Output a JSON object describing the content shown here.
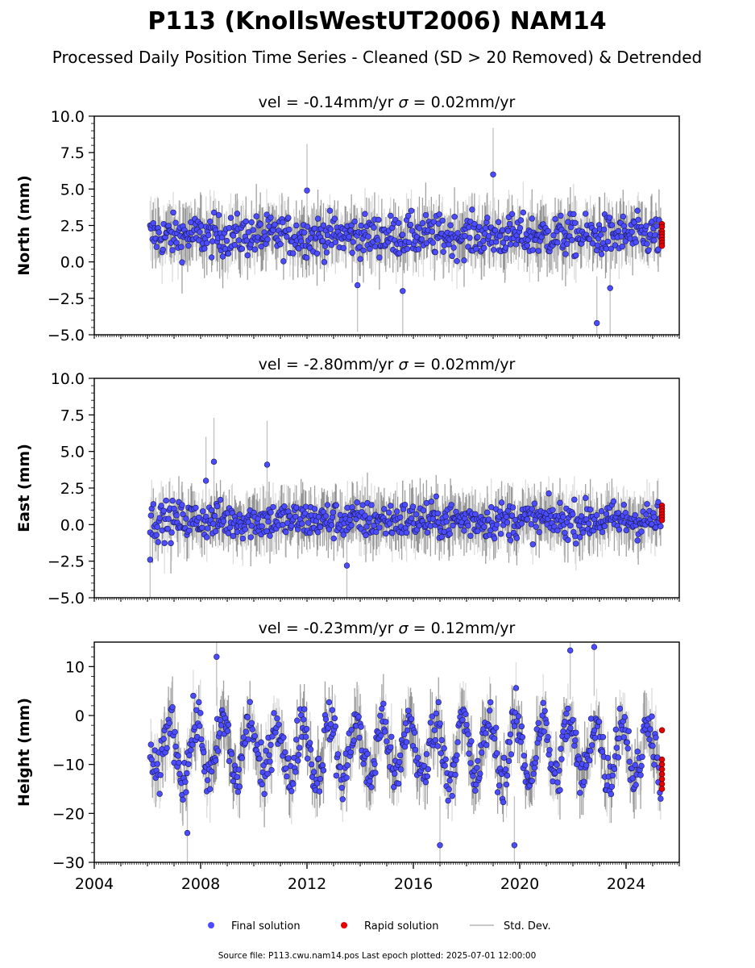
{
  "title": "P113 (KnollsWestUT2006) NAM14",
  "subtitle": "Processed Daily Position Time Series - Cleaned (SD > 20 Removed) & Detrended",
  "footer": "Source file: P113.cwu.nam14.pos  Last epoch plotted: 2025-07-01 12:00:00",
  "legend": {
    "final": "Final solution",
    "rapid": "Rapid solution",
    "std": "Std. Dev."
  },
  "colors": {
    "final": "#4b4bff",
    "rapid": "#e60000",
    "std": "#c0c0c0",
    "std_dark": "#555555"
  },
  "chart_data": [
    {
      "type": "scatter",
      "panel": "north",
      "title_vel": "vel = -0.14mm/yr",
      "title_sigma_value": "= 0.02mm/yr",
      "ylabel": "North (mm)",
      "ylim": [
        -5,
        10
      ],
      "yticks": [
        -5.0,
        -2.5,
        0.0,
        2.5,
        5.0,
        7.5,
        10.0
      ],
      "ytick_labels": [
        "−5.0",
        "−2.5",
        "0.0",
        "2.5",
        "5.0",
        "7.5",
        "10.0"
      ],
      "xlim": [
        2004,
        2026
      ],
      "start": 2006.1,
      "end": 2025.3,
      "series_summary": {
        "mean": 1.8,
        "spread": 1.0,
        "std_dev_band": 1.6
      },
      "outliers": [
        [
          2019.0,
          6.0
        ],
        [
          2012.0,
          4.9
        ],
        [
          2022.9,
          -4.2
        ],
        [
          2023.4,
          -1.8
        ],
        [
          2015.6,
          -2.0
        ],
        [
          2013.9,
          -1.6
        ]
      ],
      "rapid_solution": [
        2.6,
        2.4,
        2.1,
        1.9,
        1.7,
        1.5,
        1.3,
        1.1
      ]
    },
    {
      "type": "scatter",
      "panel": "east",
      "title_vel": "vel = -2.80mm/yr",
      "title_sigma_value": "= 0.02mm/yr",
      "ylabel": "East (mm)",
      "ylim": [
        -5,
        10
      ],
      "yticks": [
        -5.0,
        -2.5,
        0.0,
        2.5,
        5.0,
        7.5,
        10.0
      ],
      "ytick_labels": [
        "−5.0",
        "−2.5",
        "0.0",
        "2.5",
        "5.0",
        "7.5",
        "10.0"
      ],
      "xlim": [
        2004,
        2026
      ],
      "start": 2006.1,
      "end": 2025.3,
      "series_summary": {
        "mean": 0.3,
        "spread": 0.9,
        "std_dev_band": 1.5
      },
      "outliers": [
        [
          2008.5,
          4.3
        ],
        [
          2010.5,
          4.1
        ],
        [
          2013.5,
          -2.8
        ],
        [
          2008.2,
          3.0
        ],
        [
          2006.1,
          -2.4
        ]
      ],
      "rapid_solution": [
        1.3,
        1.1,
        0.9,
        0.7,
        0.5,
        0.3
      ]
    },
    {
      "type": "scatter",
      "panel": "height",
      "title_vel": "vel = -0.23mm/yr",
      "title_sigma_value": "= 0.12mm/yr",
      "ylabel": "Height (mm)",
      "ylim": [
        -30,
        15
      ],
      "yticks": [
        -30,
        -20,
        -10,
        0,
        10
      ],
      "ytick_labels": [
        "−30",
        "−20",
        "−10",
        "0",
        "10"
      ],
      "xlim": [
        2004,
        2026
      ],
      "xticks": [
        2004,
        2008,
        2012,
        2016,
        2020,
        2024
      ],
      "start": 2006.1,
      "end": 2025.3,
      "series_summary": {
        "mean": -7.0,
        "seasonal_amplitude": 6.0,
        "spread": 3.5,
        "std_dev_band": 5.0
      },
      "outliers": [
        [
          2008.6,
          12.0
        ],
        [
          2022.8,
          14.0
        ],
        [
          2021.9,
          13.3
        ],
        [
          2017.0,
          -26.5
        ],
        [
          2019.8,
          -26.5
        ],
        [
          2007.5,
          -24.0
        ]
      ],
      "rapid_solution": [
        -3.0,
        -9.0,
        -10.0,
        -11.0,
        -12.0,
        -13.0,
        -14.0,
        -15.0
      ]
    }
  ]
}
